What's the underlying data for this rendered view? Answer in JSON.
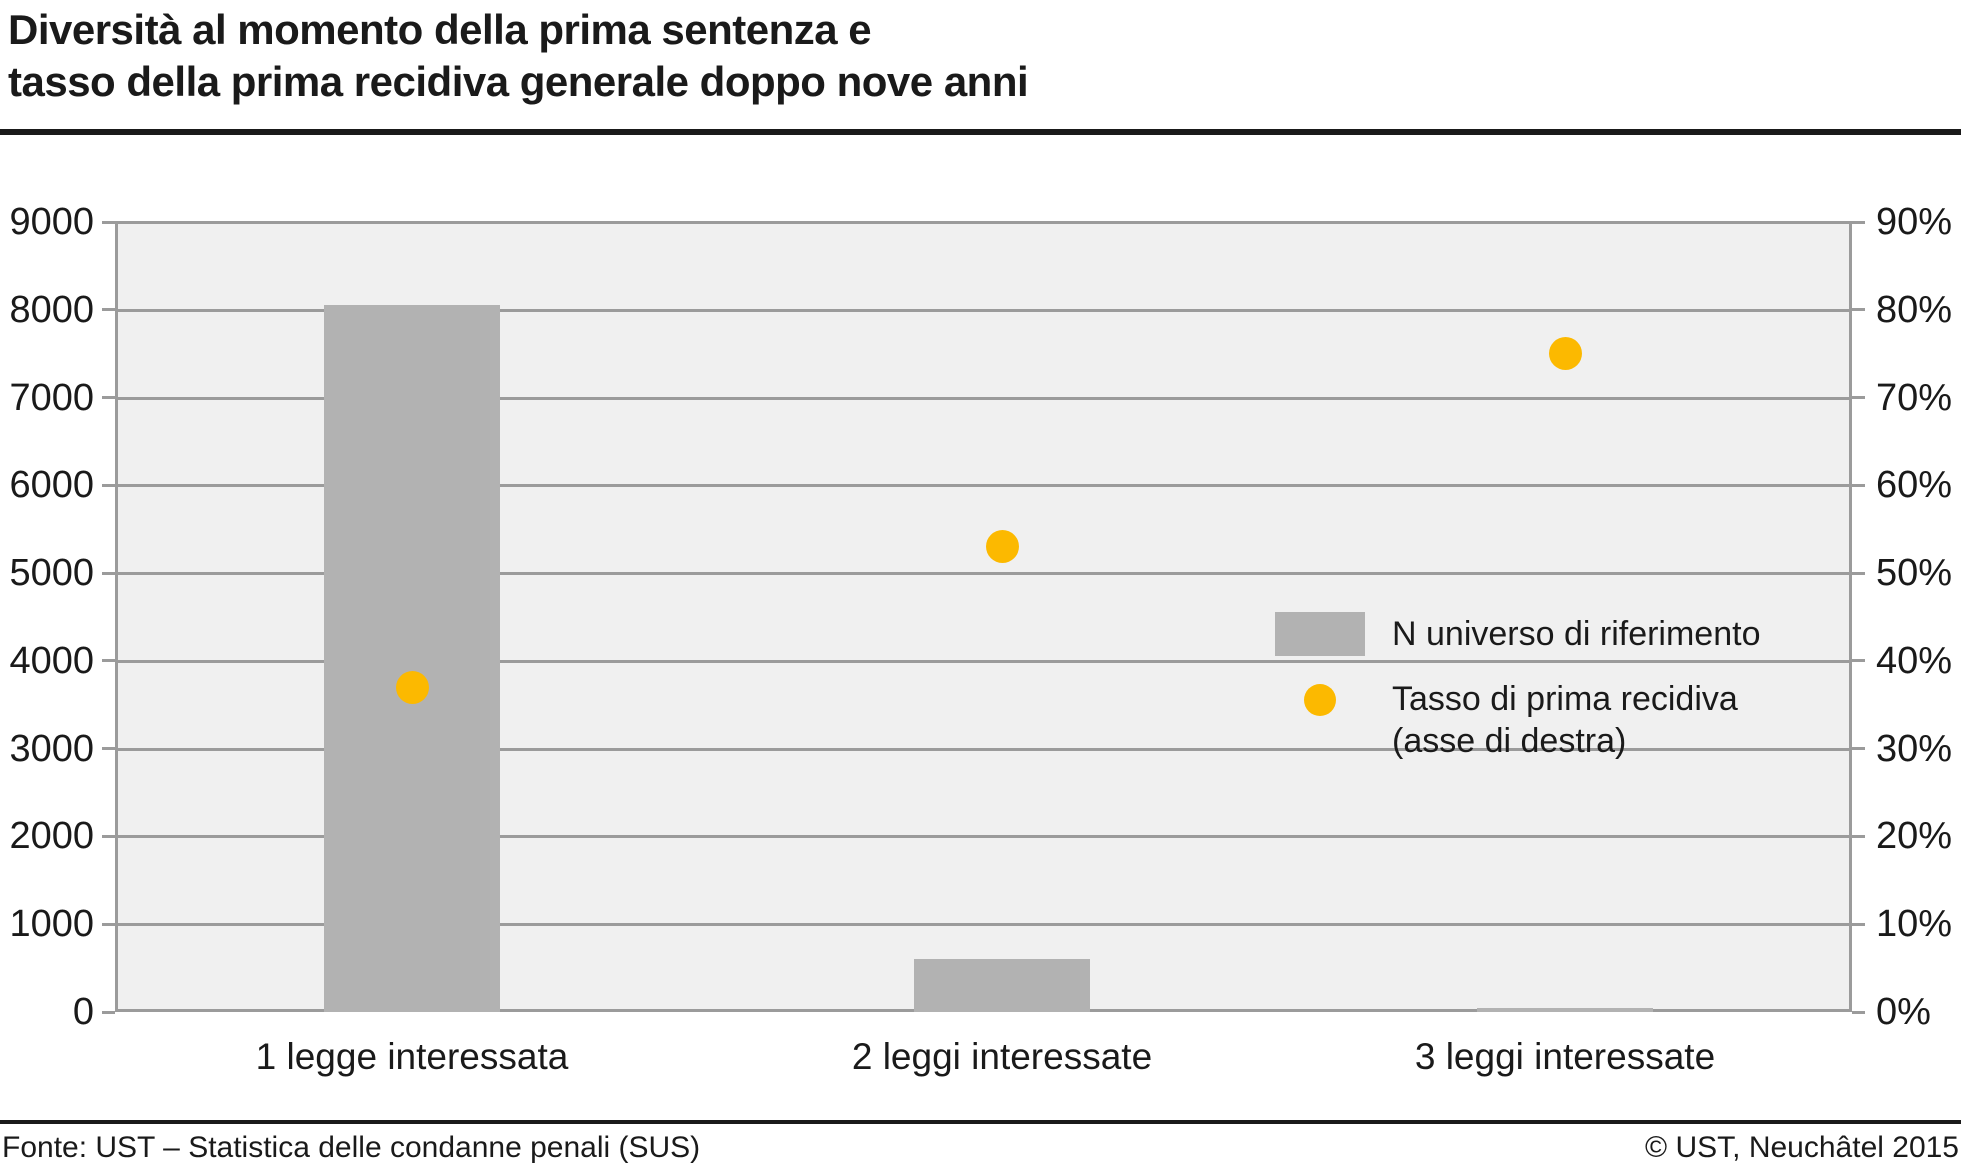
{
  "title": {
    "line1": "Diversità al momento della prima sentenza e",
    "line2": "tasso della prima recidiva generale doppo nove anni"
  },
  "colors": {
    "bar": "#b2b2b2",
    "point": "#fcb900",
    "grid": "#9b9b9b",
    "plot_background": "#f0f0f0",
    "text": "#1a1a1a"
  },
  "legend": {
    "items": [
      {
        "swatch": "bar-swatch",
        "label": "N universo di riferimento"
      },
      {
        "swatch": "point-dot",
        "label_line1": "Tasso di prima recidiva",
        "label_line2": "(asse di destra)"
      }
    ]
  },
  "footer": {
    "source": "Fonte: UST – Statistica delle condanne penali (SUS)",
    "copyright": "© UST, Neuchâtel 2015"
  },
  "chart_data": {
    "type": "bar",
    "subtype": "combo-bar-point-dual-axis",
    "categories": [
      "1 legge interessata",
      "2 leggi interessate",
      "3 leggi interessate"
    ],
    "series": [
      {
        "name": "N universo di riferimento",
        "type": "bar",
        "axis": "left",
        "color_key": "bar",
        "values": [
          8050,
          600,
          50
        ]
      },
      {
        "name": "Tasso di prima recidiva (asse di destra)",
        "type": "point",
        "axis": "right",
        "color_key": "point",
        "values": [
          37,
          53,
          75
        ]
      }
    ],
    "left_axis": {
      "min": 0,
      "max": 9000,
      "tick_step": 1000,
      "tick_labels": [
        "9000",
        "8000",
        "7000",
        "6000",
        "5000",
        "4000",
        "3000",
        "2000",
        "1000",
        "0"
      ]
    },
    "right_axis": {
      "min": 0,
      "max": 90,
      "tick_step": 10,
      "unit": "%",
      "tick_labels": [
        "90%",
        "80%",
        "70%",
        "60%",
        "50%",
        "40%",
        "30%",
        "20%",
        "10%",
        "0%"
      ]
    },
    "grid": "horizontal",
    "legend_position": "inside-right"
  }
}
